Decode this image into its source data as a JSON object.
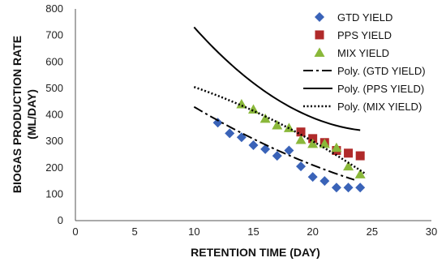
{
  "chart_data": {
    "type": "scatter",
    "xlabel": "RETENTION TIME (DAY)",
    "ylabel_line1": "BIOGAS PRODUCTION RATE",
    "ylabel_line2": "(ML/DAY)",
    "xlim": [
      0,
      30
    ],
    "ylim": [
      0,
      800
    ],
    "x_ticks": [
      0,
      5,
      10,
      15,
      20,
      25,
      30
    ],
    "y_ticks": [
      0,
      100,
      200,
      300,
      400,
      500,
      600,
      700,
      800
    ],
    "grid": false,
    "legend_position": "top-right",
    "series": [
      {
        "name": "GTD YIELD",
        "marker": "diamond",
        "color": "#3a63b8",
        "x": [
          12,
          13,
          14,
          15,
          16,
          17,
          18,
          19,
          20,
          21,
          22,
          23,
          24
        ],
        "y": [
          370,
          330,
          315,
          285,
          270,
          245,
          265,
          205,
          165,
          150,
          125,
          125,
          125
        ]
      },
      {
        "name": "PPS YIELD",
        "marker": "square",
        "color": "#b02a2a",
        "x": [
          19,
          20,
          21,
          22,
          23,
          24
        ],
        "y": [
          335,
          310,
          295,
          265,
          255,
          245
        ]
      },
      {
        "name": "MIX YIELD",
        "marker": "triangle",
        "color": "#8ab83a",
        "x": [
          14,
          15,
          16,
          17,
          18,
          19,
          20,
          21,
          22,
          23,
          24
        ],
        "y": [
          440,
          420,
          385,
          360,
          350,
          305,
          290,
          290,
          275,
          205,
          175
        ]
      }
    ],
    "trendlines": [
      {
        "name": "Poly. (GTD YIELD)",
        "style": "dash-dot",
        "x_range": [
          10,
          23.5
        ],
        "coeffs": [
          0.45,
          -35.5,
          740
        ]
      },
      {
        "name": "Poly. (PPS YIELD)",
        "style": "solid",
        "x_range": [
          10,
          24
        ],
        "coeffs": [
          1.6,
          -82.2,
          1393
        ]
      },
      {
        "name": "Poly. (MIX YIELD)",
        "style": "dotted",
        "x_range": [
          10,
          24.5
        ],
        "coeffs": [
          -0.5,
          -5.5,
          610
        ]
      }
    ]
  }
}
